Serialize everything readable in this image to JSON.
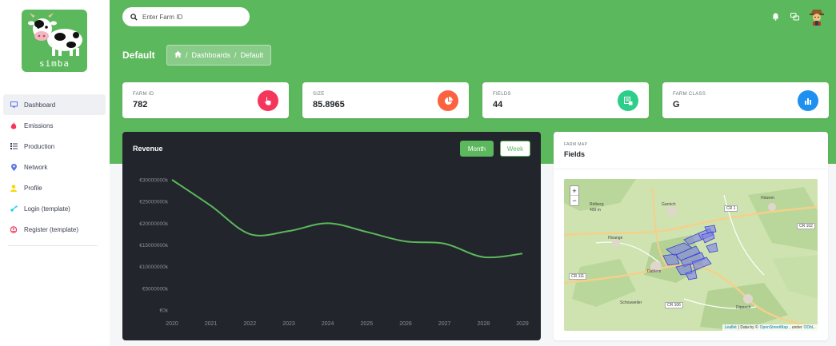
{
  "app": {
    "logo_text": "simba"
  },
  "sidebar": {
    "items": [
      {
        "label": "Dashboard",
        "icon": "monitor-icon",
        "active": true
      },
      {
        "label": "Emissions",
        "icon": "fire-icon"
      },
      {
        "label": "Production",
        "icon": "list-icon"
      },
      {
        "label": "Network",
        "icon": "map-pin-icon"
      },
      {
        "label": "Profile",
        "icon": "user-icon"
      },
      {
        "label": "Login (template)",
        "icon": "login-icon"
      },
      {
        "label": "Register (template)",
        "icon": "register-icon"
      }
    ]
  },
  "header": {
    "search_placeholder": "Enter Farm ID",
    "page_title": "Default",
    "breadcrumb": {
      "sep": "/",
      "parent": "Dashboards",
      "current": "Default"
    }
  },
  "stats": [
    {
      "label": "FARM ID",
      "value": "782",
      "icon": "hand-pointer-icon",
      "color": "#f5365c"
    },
    {
      "label": "SIZE",
      "value": "85.8965",
      "icon": "pie-chart-icon",
      "color": "#fb6340"
    },
    {
      "label": "FIELDS",
      "value": "44",
      "icon": "fields-icon",
      "color": "#2dce89"
    },
    {
      "label": "FARM CLASS",
      "value": "G",
      "icon": "bar-chart-icon",
      "color": "#11cdef"
    }
  ],
  "revenue": {
    "title": "Revenue",
    "month_label": "Month",
    "week_label": "Week"
  },
  "chart_data": {
    "type": "line",
    "title": "Revenue",
    "x": [
      "2020",
      "2021",
      "2022",
      "2023",
      "2024",
      "2025",
      "2026",
      "2027",
      "2028",
      "2029"
    ],
    "series": [
      {
        "values": [
          30000000,
          24000000,
          17500000,
          18200000,
          20000000,
          18000000,
          15800000,
          15300000,
          12200000,
          13000000
        ]
      }
    ],
    "ytick_labels": [
      "€0k",
      "€5000000k",
      "€10000000k",
      "€15000000k",
      "€20000000k",
      "€25000000k",
      "€30000000k"
    ],
    "ylim": [
      0,
      30000000
    ],
    "grid": false,
    "line_color": "#5cb85c"
  },
  "map": {
    "supertitle": "FARM MAP",
    "title": "Fields",
    "zoom_in": "+",
    "zoom_out": "−",
    "attribution": {
      "leaflet": "Leaflet",
      "mid": "| Data by ©",
      "osm": "OpenStreetMap",
      "under": ", under",
      "odbl": "ODbL."
    },
    "labels": {
      "holzem": "Holzem",
      "garnich": "Garnich",
      "hivange": "Hivange",
      "dahlem": "Dahlem",
      "dippach": "Dippach",
      "bebierg": "Réiberg",
      "bebierg_alt": "400 m",
      "schouweiler": "Schouweiler"
    },
    "roads": {
      "cr1": "CR 1",
      "cr102": "CR 102",
      "cr111": "CR 111",
      "cr106": "CR 106"
    }
  }
}
